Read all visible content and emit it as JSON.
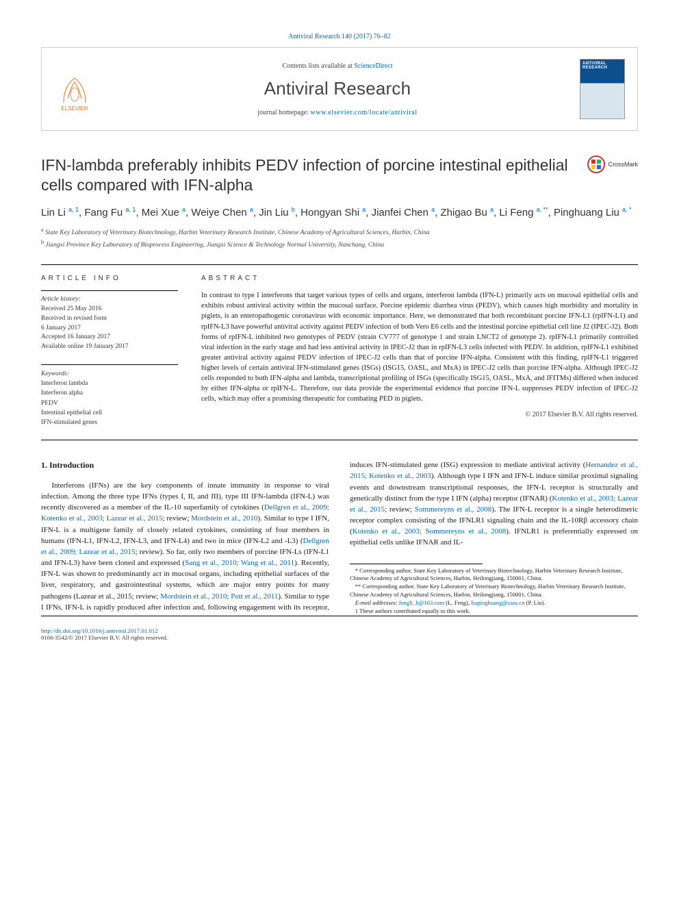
{
  "citation": "Antiviral Research 140 (2017) 76–82",
  "header": {
    "contents_prefix": "Contents lists available at ",
    "contents_link": "ScienceDirect",
    "journal_name": "Antiviral Research",
    "homepage_prefix": "journal homepage: ",
    "homepage_url": "www.elsevier.com/locate/antiviral",
    "publisher_logo_text": "ELSEVIER",
    "cover_title": "ANTIVIRAL RESEARCH",
    "colors": {
      "link_blue": "#0066b3",
      "elsevier_orange": "#e9711c",
      "cover_blue": "#0b4f8f",
      "border_gray": "#cccccc"
    }
  },
  "crossmark": {
    "label": "CrossMark"
  },
  "title": "IFN-lambda preferably inhibits PEDV infection of porcine intestinal epithelial cells compared with IFN-alpha",
  "authors_html_parts": [
    {
      "name": "Lin Li",
      "sup": "a, 1"
    },
    {
      "name": "Fang Fu",
      "sup": "a, 1"
    },
    {
      "name": "Mei Xue",
      "sup": "a"
    },
    {
      "name": "Weiye Chen",
      "sup": "a"
    },
    {
      "name": "Jin Liu",
      "sup": "b"
    },
    {
      "name": "Hongyan Shi",
      "sup": "a"
    },
    {
      "name": "Jianfei Chen",
      "sup": "a"
    },
    {
      "name": "Zhigao Bu",
      "sup": "a"
    },
    {
      "name": "Li Feng",
      "sup": "a, **"
    },
    {
      "name": "Pinghuang Liu",
      "sup": "a, *"
    }
  ],
  "affiliations": [
    {
      "sup": "a",
      "text": "State Key Laboratory of Veterinary Biotechnology, Harbin Veterinary Research Institute, Chinese Academy of Agricultural Sciences, Harbin, China"
    },
    {
      "sup": "b",
      "text": "Jiangxi Province Key Laboratory of Bioprocess Engineering, Jiangxi Science & Technology Normal University, Nanchang, China"
    }
  ],
  "article_info": {
    "heading": "article info",
    "history_label": "Article history:",
    "history": [
      "Received 25 May 2016",
      "Received in revised form",
      "6 January 2017",
      "Accepted 16 January 2017",
      "Available online 19 January 2017"
    ],
    "keywords_label": "Keywords:",
    "keywords": [
      "Interferon lambda",
      "Interferon alpha",
      "PEDV",
      "Intestinal epithelial cell",
      "IFN-stimulated genes"
    ]
  },
  "abstract": {
    "heading": "abstract",
    "text": "In contrast to type I interferons that target various types of cells and organs, interferon lambda (IFN-L) primarily acts on mucosal epithelial cells and exhibits robust antiviral activity within the mucosal surface. Porcine epidemic diarrhea virus (PEDV), which causes high morbidity and mortality in piglets, is an enteropathogenic coronavirus with economic importance. Here, we demonstrated that both recombinant porcine IFN-L1 (rpIFN-L1) and rpIFN-L3 have powerful antiviral activity against PEDV infection of both Vero E6 cells and the intestinal porcine epithelial cell line J2 (IPEC-J2). Both forms of rpIFN-L inhibited two genotypes of PEDV (strain CV777 of genotype 1 and strain LNCT2 of genotype 2). rpIFN-L1 primarily controlled viral infection in the early stage and had less antiviral activity in IPEC-J2 than in rpIFN-L3 cells infected with PEDV. In addition, rpIFN-L1 exhibited greater antiviral activity against PEDV infection of IPEC-J2 cells than that of porcine IFN-alpha. Consistent with this finding, rpIFN-L1 triggered higher levels of certain antiviral IFN-stimulated genes (ISGs) (ISG15, OASL, and MxA) in IPEC-J2 cells than porcine IFN-alpha. Although IPEC-J2 cells responded to both IFN-alpha and lambda, transcriptional profiling of ISGs (specifically ISG15, OASL, MxA, and IFITMs) differed when induced by either IFN-alpha or rpIFN-L. Therefore, our data provide the experimental evidence that porcine IFN-L suppresses PEDV infection of IPEC-J2 cells, which may offer a promising therapeutic for combating PED in piglets.",
    "copyright": "© 2017 Elsevier B.V. All rights reserved."
  },
  "section1": {
    "heading": "1. Introduction",
    "para": "Interferons (IFNs) are the key components of innate immunity in response to viral infection. Among the three type IFNs (types I, II, and III), type III IFN-lambda (IFN-L) was recently discovered as a member of the IL-10 superfamily of cytokines (Dellgren et al., 2009; Kotenko et al., 2003; Lazear et al., 2015; review; Mordstein et al., 2010). Similar to type I IFN, IFN-L is a multigene family of closely related cytokines, consisting of four members in humans (IFN-L1, IFN-L2, IFN-L3, and IFN-L4) and two in mice (IFN-L2 and -L3) (Dellgren et al., 2009; Lazear et al., 2015; review). So far, only two members of porcine IFN-Ls (IFN-L1 and IFN-L3) have been cloned and expressed (Sang et al., 2010; Wang et al., 2011). Recently, IFN-L was shown to predominantly act in mucosal organs, including epithelial surfaces of the liver, respiratory, and gastrointestinal systems, which are major entry points for many pathogens (Lazear et al., 2015; review; Mordstein et al., 2010; Pott et al., 2011). Similar to type I IFNs, IFN-L is rapidly produced after infection and, following engagement with its receptor, induces IFN-stimulated gene (ISG) expression to mediate antiviral activity (Hernandez et al., 2015; Kotenko et al., 2003). Although type I IFN and IFN-L induce similar proximal signaling events and downstream transcriptional responses, the IFN-L receptor is structurally and genetically distinct from the type I IFN (alpha) receptor (IFNAR) (Kotenko et al., 2003; Lazear et al., 2015; review; Sommereyns et al., 2008). The IFN-L receptor is a single heterodimeric receptor complex consisting of the IFNLR1 signaling chain and the IL-10Rβ accessory chain (Kotenko et al., 2003; Sommereyns et al., 2008). IFNLR1 is preferentially expressed on epithelial cells unlike IFNAR and IL-",
    "ref_links": [
      "Dellgren et al., 2009; Kotenko et al., 2003; Lazear et al., 2015",
      "Mordstein et al., 2010",
      "Dellgren et al., 2009; Lazear et al., 2015",
      "Sang et al., 2010; Wang et al., 2011",
      "Lazear et al., 2015",
      "Mordstein et al., 2010; Pott et al., 2011",
      "Hernandez et al., 2015; Kotenko et al., 2003",
      "Kotenko et al., 2003; Lazear et al., 2015",
      "Sommereyns et al., 2008",
      "Kotenko et al., 2003; Sommereyns et al., 2008"
    ]
  },
  "footnotes": {
    "items": [
      "* Corresponding author. State Key Laboratory of Veterinary Biotechnology, Harbin Veterinary Research Institute, Chinese Academy of Agricultural Sciences, Harbin, Heilongjiang, 150001, China.",
      "** Corresponding author. State Key Laboratory of Veterinary Biotechnology, Harbin Veterinary Research Institute, Chinese Academy of Agricultural Sciences, Harbin, Heilongjiang, 150001, China."
    ],
    "emails_label": "E-mail addresses: ",
    "emails": [
      {
        "addr": "fengli_h@163.com",
        "who": "(L. Feng)"
      },
      {
        "addr": "liupinghuang@caas.cn",
        "who": "(P. Liu)"
      }
    ],
    "equal": "1 These authors contributed equally to this work."
  },
  "bottom": {
    "doi": "http://dx.doi.org/10.1016/j.antiviral.2017.01.012",
    "issn_line": "0166-3542/© 2017 Elsevier B.V. All rights reserved."
  }
}
